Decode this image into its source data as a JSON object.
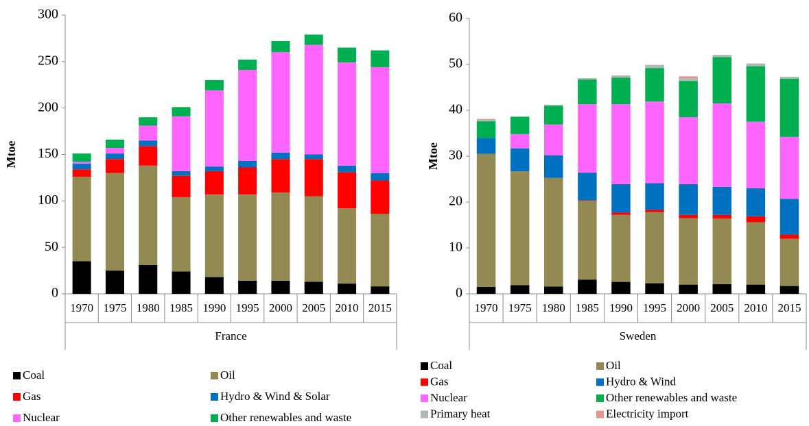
{
  "chart_data": [
    {
      "type": "bar",
      "stacked": true,
      "ylabel": "Mtoe",
      "group_label": "France",
      "categories": [
        "1970",
        "1975",
        "1980",
        "1985",
        "1990",
        "1995",
        "2000",
        "2005",
        "2010",
        "2015"
      ],
      "ylim": [
        0,
        300
      ],
      "yticks": [
        0,
        50,
        100,
        150,
        200,
        250,
        300
      ],
      "series": [
        {
          "name": "Coal",
          "color": "#000000",
          "values": [
            35,
            25,
            31,
            24,
            18,
            14,
            14,
            13,
            11,
            8
          ]
        },
        {
          "name": "Oil",
          "color": "#938953",
          "values": [
            91,
            105,
            107,
            80,
            89,
            93,
            95,
            92,
            81,
            78
          ]
        },
        {
          "name": "Gas",
          "color": "#ff0000",
          "values": [
            8,
            15,
            21,
            23,
            25,
            29,
            36,
            40,
            39,
            36
          ]
        },
        {
          "name": "Hydro & Wind & Solar",
          "color": "#0070c0",
          "values": [
            6,
            6,
            6,
            5,
            5,
            7,
            7,
            5,
            7,
            8
          ]
        },
        {
          "name": "Nuclear",
          "color": "#ff66ff",
          "values": [
            2,
            6,
            16,
            59,
            82,
            98,
            108,
            118,
            111,
            114
          ]
        },
        {
          "name": "Other renewables and waste",
          "color": "#00b050",
          "values": [
            9,
            9,
            9,
            10,
            11,
            11,
            12,
            11,
            16,
            18
          ]
        }
      ]
    },
    {
      "type": "bar",
      "stacked": true,
      "ylabel": "Mtoe",
      "group_label": "Sweden",
      "categories": [
        "1970",
        "1975",
        "1980",
        "1985",
        "1990",
        "1995",
        "2000",
        "2005",
        "2010",
        "2015"
      ],
      "ylim": [
        0,
        60
      ],
      "yticks": [
        0,
        10,
        20,
        30,
        40,
        50,
        60
      ],
      "series": [
        {
          "name": "Coal",
          "color": "#000000",
          "values": [
            1.5,
            1.9,
            1.6,
            3.1,
            2.6,
            2.3,
            2.0,
            2.1,
            2.0,
            1.7
          ]
        },
        {
          "name": "Oil",
          "color": "#938953",
          "values": [
            29,
            24.8,
            23.7,
            17.2,
            14.6,
            15.5,
            14.5,
            14.3,
            13.6,
            10.3
          ]
        },
        {
          "name": "Gas",
          "color": "#ff0000",
          "values": [
            0,
            0,
            0,
            0.1,
            0.5,
            0.5,
            0.7,
            0.8,
            1.3,
            0.9
          ]
        },
        {
          "name": "Hydro & Wind",
          "color": "#0070c0",
          "values": [
            3.5,
            5,
            4.9,
            6,
            6.2,
            5.8,
            6.7,
            6.1,
            6.1,
            7.8
          ]
        },
        {
          "name": "Nuclear",
          "color": "#ff66ff",
          "values": [
            0,
            3.1,
            6.7,
            14.9,
            17.4,
            17.8,
            14.6,
            18.2,
            14.5,
            13.5
          ]
        },
        {
          "name": "Other renewables and waste",
          "color": "#00b050",
          "values": [
            3.6,
            3.8,
            4.1,
            5.4,
            5.8,
            7.3,
            7.9,
            10.1,
            12.1,
            12.7
          ]
        },
        {
          "name": "Primary heat",
          "color": "#b0b8b4",
          "values": [
            0.3,
            0,
            0.2,
            0.3,
            0.5,
            0.7,
            0.6,
            0.5,
            0.6,
            0.4
          ]
        },
        {
          "name": "Electricity import",
          "color": "#e6968c",
          "values": [
            0.2,
            0,
            0,
            0,
            0,
            0,
            0.4,
            0,
            0,
            0
          ]
        }
      ]
    }
  ]
}
